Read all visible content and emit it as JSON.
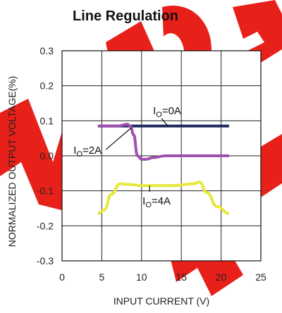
{
  "watermark": {
    "text": "NOT RECOMMENDED",
    "color": "#e8201a"
  },
  "chart_data": {
    "type": "line",
    "title": "Line Regulation",
    "xlabel": "INPUT CURRENT (V)",
    "ylabel": "NORMALIZED OUTPUT VOLTAGE(%)",
    "xlim": [
      0,
      25
    ],
    "ylim": [
      -0.3,
      0.3
    ],
    "x_ticks": [
      "0",
      "5",
      "10",
      "15",
      "20",
      "25"
    ],
    "y_ticks": [
      "0.3",
      "0.2",
      "0.1",
      "0.0",
      "-0.1",
      "-0.2",
      "-0.3"
    ],
    "grid": true,
    "series": [
      {
        "name": "IO=0A",
        "label_main": "I",
        "label_sub": "O",
        "label_rest": "=0A",
        "color": "#1f2a5e",
        "x": [
          4.5,
          21
        ],
        "y": [
          0.085,
          0.085
        ]
      },
      {
        "name": "IO=2A",
        "label_main": "I",
        "label_sub": "O",
        "label_rest": "=2A",
        "color": "#a050b0",
        "x": [
          4.5,
          7,
          8.2,
          8.6,
          9,
          9.5,
          10,
          10.5,
          11.5,
          13,
          21
        ],
        "y": [
          0.085,
          0.085,
          0.09,
          0.085,
          0.06,
          0.0,
          -0.01,
          -0.01,
          -0.005,
          0.0,
          0.0
        ]
      },
      {
        "name": "IO=4A",
        "label_main": "I",
        "label_sub": "O",
        "label_rest": "=4A",
        "color": "#e6e83a",
        "x": [
          4.5,
          5.3,
          6.2,
          7.3,
          8.5,
          10,
          14,
          16.5,
          17.3,
          18.2,
          19.5,
          21
        ],
        "y": [
          -0.165,
          -0.155,
          -0.11,
          -0.08,
          -0.082,
          -0.085,
          -0.085,
          -0.08,
          -0.075,
          -0.105,
          -0.145,
          -0.165
        ]
      }
    ]
  }
}
